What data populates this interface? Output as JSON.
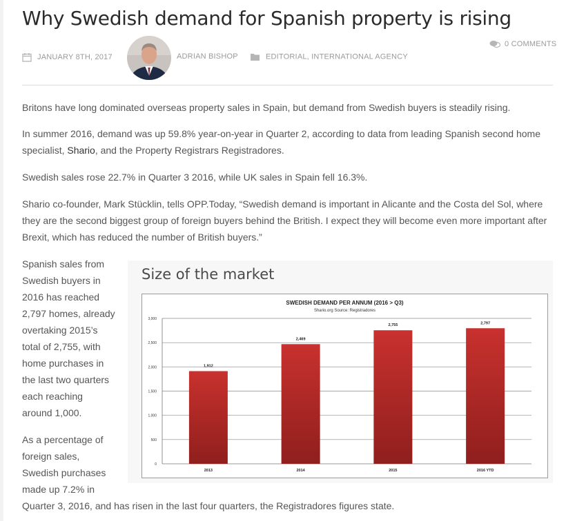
{
  "article": {
    "title": "Why Swedish demand for Spanish property is rising",
    "date": "JANUARY 8TH, 2017",
    "author": "ADRIAN BISHOP",
    "categories": "EDITORIAL, INTERNATIONAL AGENCY",
    "comments": "0 COMMENTS"
  },
  "icons": {
    "date": "calendar-icon",
    "categories": "folder-icon",
    "comments": "comments-icon",
    "author": "author-avatar"
  },
  "body": {
    "p1": "Britons have long dominated overseas property sales in Spain, but demand from Swedish buyers is steadily rising.",
    "p2_line1": "In summer 2016, demand was up 59.8% year-on-year in Quarter 2, according to data from leading Spanish second home",
    "p2_line2_pre": "specialist, ",
    "p2_link": "Shario",
    "p2_line2_post": ", and the Property Registrars Registradores.",
    "p3": "Swedish sales rose 22.7% in Quarter 3 2016, while UK sales in Spain fell 16.3%.",
    "p4_line1": "Shario co-founder, Mark Stücklin, tells OPP.Today, “Swedish demand is important in Alicante and the Costa del Sol, where",
    "p4_line2": "they are the second biggest group of foreign buyers behind the British. I expect they will become even more important after",
    "p4_line3": "Brexit, which has reduced the number of British buyers.”",
    "side1": [
      "Spanish sales from",
      "Swedish buyers in",
      "2016 has reached",
      "2,797 homes, already",
      "overtaking 2015’s",
      "total of 2,755, with",
      "home purchases in",
      "the last two quarters",
      "each reaching",
      "around 1,000."
    ],
    "side2": [
      "As a percentage of",
      "foreign sales,",
      "Swedish purchases",
      "made up 7.2% in"
    ],
    "final": "Quarter 3, 2016, and has risen in the last four quarters, the Registradores figures state."
  },
  "figure": {
    "caption": "Size of the market"
  },
  "chart_data": {
    "type": "bar",
    "title": "SWEDISH DEMAND PER ANNUM (2016 > Q3)",
    "subtitle": "Shario.org Source: Registradores",
    "categories": [
      "2013",
      "2014",
      "2015",
      "2016 YTD"
    ],
    "values": [
      1912,
      2469,
      2755,
      2797
    ],
    "value_labels": [
      "1,912",
      "2,469",
      "2,755",
      "2,797"
    ],
    "yticks": [
      0,
      500,
      1000,
      1500,
      2000,
      2500,
      3000
    ],
    "ytick_labels": [
      "0",
      "500",
      "1,000",
      "1,500",
      "2,000",
      "2,500",
      "3,000"
    ],
    "ylim": [
      0,
      3000
    ],
    "xlabel": "",
    "ylabel": "",
    "grid": true,
    "legend": "none",
    "bar_color": "#c8312e"
  },
  "colors": {
    "title": "#2b2b2b",
    "text": "#555555",
    "meta": "#9a9a9a",
    "bar": "#c8312e"
  }
}
